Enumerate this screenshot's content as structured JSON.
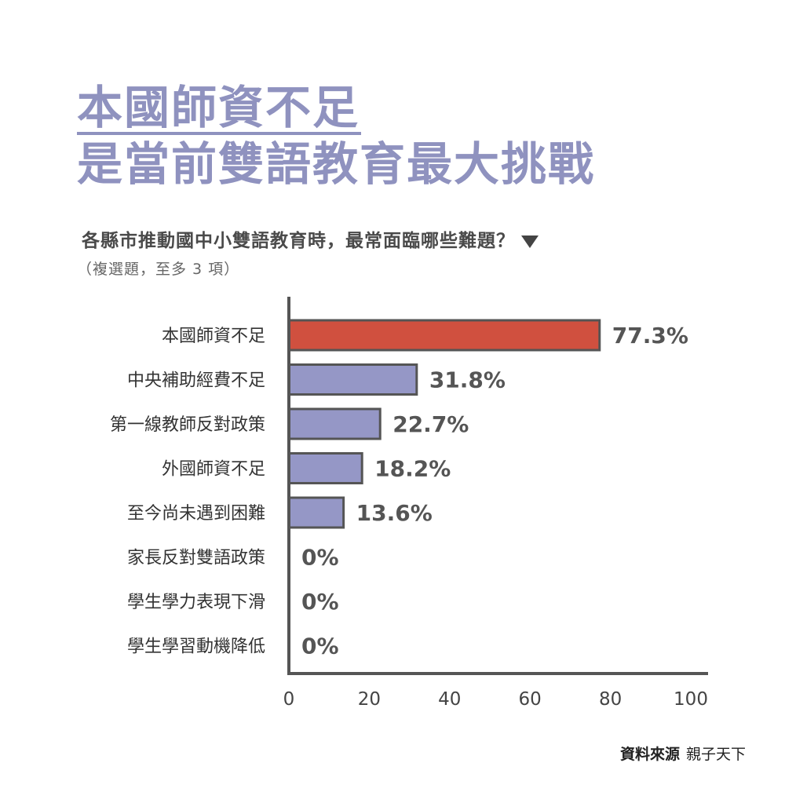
{
  "header": {
    "title_line1": "本國師資不足",
    "title_line2": "是當前雙語教育最大挑戰",
    "question": "各縣市推動國中小雙語教育時，最常面臨哪些難題？",
    "note": "（複選題，至多 3 項）"
  },
  "footer": {
    "source_label": "資料來源",
    "source_name": "親子天下"
  },
  "colors": {
    "title": "#8f92bf",
    "highlight_bar": "#d0503f",
    "bar": "#9597c6",
    "outline": "#555555",
    "value_text": "#555555"
  },
  "chart_data": {
    "type": "bar",
    "orientation": "horizontal",
    "categories": [
      "本國師資不足",
      "中央補助經費不足",
      "第一線教師反對政策",
      "外國師資不足",
      "至今尚未遇到困難",
      "家長反對雙語政策",
      "學生學力表現下滑",
      "學生學習動機降低"
    ],
    "values": [
      77.3,
      31.8,
      22.7,
      18.2,
      13.6,
      0,
      0,
      0
    ],
    "value_labels": [
      "77.3%",
      "31.8%",
      "22.7%",
      "18.2%",
      "13.6%",
      "0%",
      "0%",
      "0%"
    ],
    "highlight_index": 0,
    "xlim": [
      0,
      100
    ],
    "xticks": [
      0,
      20,
      40,
      60,
      80,
      100
    ],
    "grid": false,
    "legend": "none"
  }
}
